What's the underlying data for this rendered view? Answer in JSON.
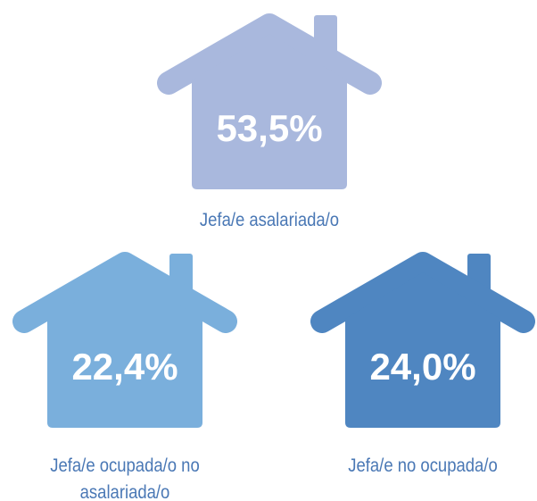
{
  "chart_data": {
    "type": "pictograph",
    "categories": [
      "Jefa/e asalariada/o",
      "Jefa/e ocupada/o no asalariada/o",
      "Jefa/e no ocupada/o"
    ],
    "values": [
      53.5,
      22.4,
      24.0
    ],
    "value_labels": [
      "53,5%",
      "22,4%",
      "24,0%"
    ],
    "colors": [
      "#a9b8dd",
      "#7aafdc",
      "#4f86c1"
    ],
    "label_color": "#4a78b5"
  }
}
